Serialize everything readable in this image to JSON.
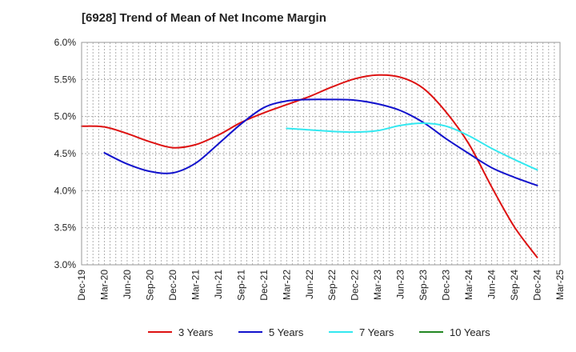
{
  "chart_data": {
    "type": "line",
    "title": "[6928]  Trend of Mean of Net Income Margin",
    "xlabel": "",
    "ylabel": "",
    "x_ticks": [
      "Dec-19",
      "Mar-20",
      "Jun-20",
      "Sep-20",
      "Dec-20",
      "Mar-21",
      "Jun-21",
      "Sep-21",
      "Dec-21",
      "Mar-22",
      "Jun-22",
      "Sep-22",
      "Dec-22",
      "Mar-23",
      "Jun-23",
      "Sep-23",
      "Dec-23",
      "Mar-24",
      "Jun-24",
      "Sep-24",
      "Dec-24",
      "Mar-25"
    ],
    "y_ticks": [
      "3.0%",
      "3.5%",
      "4.0%",
      "4.5%",
      "5.0%",
      "5.5%",
      "6.0%"
    ],
    "ylim": [
      3.0,
      6.0
    ],
    "grid": true,
    "legend_position": "bottom",
    "series": [
      {
        "name": "3 Years",
        "color": "#dd1111",
        "x": [
          "Dec-19",
          "Mar-20",
          "Jun-20",
          "Sep-20",
          "Dec-20",
          "Mar-21",
          "Jun-21",
          "Sep-21",
          "Dec-21",
          "Mar-22",
          "Jun-22",
          "Sep-22",
          "Dec-22",
          "Mar-23",
          "Jun-23",
          "Sep-23",
          "Dec-23",
          "Mar-24",
          "Jun-24",
          "Sep-24",
          "Dec-24"
        ],
        "values": [
          4.87,
          4.86,
          4.77,
          4.66,
          4.58,
          4.62,
          4.75,
          4.92,
          5.05,
          5.16,
          5.27,
          5.4,
          5.51,
          5.56,
          5.53,
          5.38,
          5.06,
          4.63,
          4.05,
          3.51,
          3.1
        ]
      },
      {
        "name": "5 Years",
        "color": "#1111cc",
        "x": [
          "Mar-20",
          "Jun-20",
          "Sep-20",
          "Dec-20",
          "Mar-21",
          "Jun-21",
          "Sep-21",
          "Dec-21",
          "Mar-22",
          "Jun-22",
          "Sep-22",
          "Dec-22",
          "Mar-23",
          "Jun-23",
          "Sep-23",
          "Dec-23",
          "Mar-24",
          "Jun-24",
          "Sep-24",
          "Dec-24"
        ],
        "values": [
          4.51,
          4.36,
          4.26,
          4.24,
          4.37,
          4.63,
          4.9,
          5.12,
          5.21,
          5.23,
          5.23,
          5.22,
          5.17,
          5.08,
          4.92,
          4.7,
          4.5,
          4.31,
          4.18,
          4.07
        ]
      },
      {
        "name": "7 Years",
        "color": "#33e8f0",
        "x": [
          "Mar-22",
          "Jun-22",
          "Sep-22",
          "Dec-22",
          "Mar-23",
          "Jun-23",
          "Sep-23",
          "Dec-23",
          "Mar-24",
          "Jun-24",
          "Sep-24",
          "Dec-24"
        ],
        "values": [
          4.84,
          4.82,
          4.8,
          4.79,
          4.81,
          4.88,
          4.91,
          4.87,
          4.74,
          4.57,
          4.42,
          4.28
        ]
      },
      {
        "name": "10 Years",
        "color": "#228822",
        "x": [],
        "values": []
      }
    ]
  }
}
